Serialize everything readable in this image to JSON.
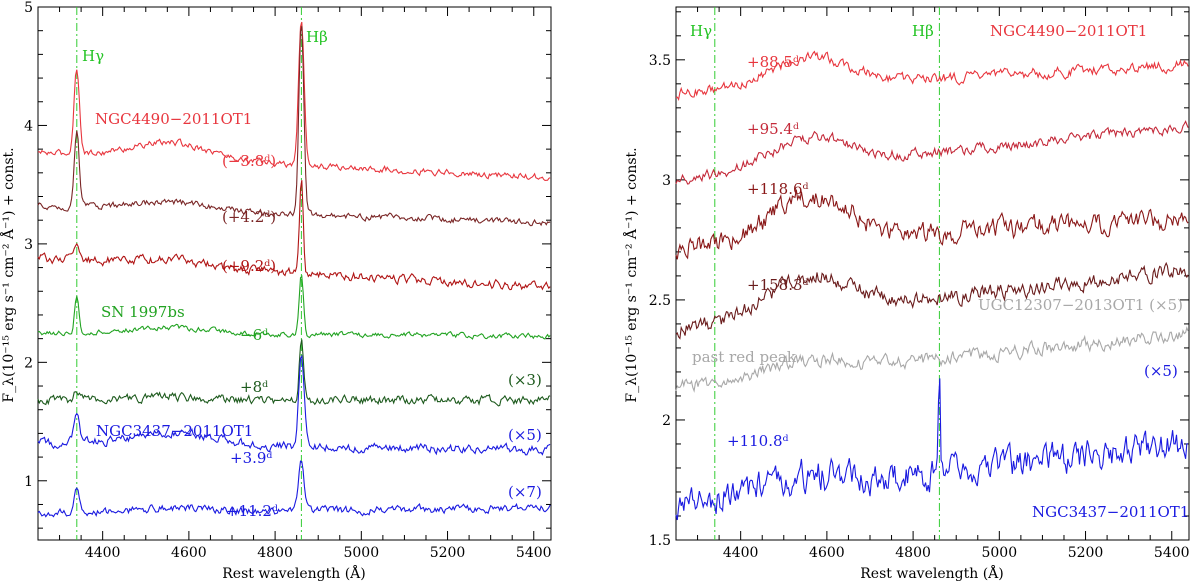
{
  "chart_data": [
    {
      "type": "line",
      "panel": "left",
      "xlabel": "Rest wavelength (Å)",
      "ylabel": "F_λ(10⁻¹⁵ erg s⁻¹ cm⁻² Å⁻¹) + const.",
      "xlim": [
        4250,
        5440
      ],
      "ylim": [
        0.5,
        5.0
      ],
      "xticks": [
        4400,
        4600,
        4800,
        5000,
        5200,
        5400
      ],
      "yticks": [
        1,
        2,
        3,
        4,
        5
      ],
      "lines": [
        {
          "label": "Hγ",
          "x": 4340
        },
        {
          "label": "Hβ",
          "x": 4861
        }
      ],
      "series": [
        {
          "name": "NGC4490-2011OT1 −3.8d",
          "color": "#e8363e",
          "base": 3.77,
          "slope": -0.21,
          "hg": 0.72,
          "hb": 1.23,
          "w": 9,
          "noise": 0.05,
          "bump": 0.14
        },
        {
          "name": "NGC4490-2011OT1 +4.2d",
          "color": "#7a2626",
          "base": 3.32,
          "slope": -0.14,
          "hg": 0.62,
          "hb": 1.62,
          "w": 8,
          "noise": 0.05,
          "bump": 0.07
        },
        {
          "name": "NGC4490-2011OT1 +9.2d",
          "color": "#b01414",
          "base": 2.88,
          "slope": -0.25,
          "hg": 0.12,
          "hb": 0.8,
          "w": 6,
          "noise": 0.07,
          "bump": 0.05
        },
        {
          "name": "SN 1997bs −6d",
          "color": "#22a322",
          "base": 2.25,
          "slope": -0.03,
          "hg": 0.32,
          "hb": 0.5,
          "w": 7,
          "noise": 0.04,
          "bump": 0.05
        },
        {
          "name": "SN 1997bs +8d (×3)",
          "color": "#1d5a1d",
          "base": 1.68,
          "slope": 0.0,
          "hg": 0.1,
          "hb": 0.5,
          "w": 7,
          "noise": 0.07,
          "bump": 0.03
        },
        {
          "name": "NGC3437-2011OT1 +3.9d (×5)",
          "color": "#1a1ae0",
          "base": 1.32,
          "slope": -0.06,
          "hg": 0.2,
          "hb": 0.76,
          "w": 9,
          "noise": 0.07,
          "bump": 0.1
        },
        {
          "name": "NGC3437-2011OT1 +11.2d (×7)",
          "color": "#1a1ae0",
          "base": 0.72,
          "slope": 0.05,
          "hg": 0.2,
          "hb": 0.44,
          "w": 9,
          "noise": 0.06,
          "bump": 0.04
        }
      ],
      "annotations": [
        {
          "text": "Hγ",
          "color": "#22c322"
        },
        {
          "text": "Hβ",
          "color": "#22c322"
        },
        {
          "text": "NGC4490−2011OT1",
          "color": "#e8363e"
        },
        {
          "text": "(−3.8ᵈ)",
          "color": "#e8363e"
        },
        {
          "text": "(+4.2ᵈ)",
          "color": "#7a2626"
        },
        {
          "text": "(+9.2ᵈ)",
          "color": "#b01414"
        },
        {
          "text": "SN 1997bs",
          "color": "#22a322"
        },
        {
          "text": "−6ᵈ",
          "color": "#22a322"
        },
        {
          "text": "+8ᵈ",
          "color": "#1d5a1d"
        },
        {
          "text": "(×3)",
          "color": "#1d5a1d"
        },
        {
          "text": "NGC3437−2011OT1",
          "color": "#1a1ae0"
        },
        {
          "text": "+3.9ᵈ",
          "color": "#1a1ae0"
        },
        {
          "text": "(×5)",
          "color": "#1a1ae0"
        },
        {
          "text": "+11.2ᵈ",
          "color": "#1a1ae0"
        },
        {
          "text": "(×7)",
          "color": "#1a1ae0"
        }
      ]
    },
    {
      "type": "line",
      "panel": "right",
      "xlabel": "Rest wavelength (Å)",
      "ylabel": "F_λ(10⁻¹⁵ erg s⁻¹ cm⁻² Å⁻¹) + const.",
      "xlim": [
        4250,
        5440
      ],
      "ylim": [
        1.5,
        3.72
      ],
      "xticks": [
        4400,
        4600,
        4800,
        5000,
        5200,
        5400
      ],
      "yticks": [
        1.5,
        2,
        2.5,
        3,
        3.5
      ],
      "lines": [
        {
          "label": "Hγ",
          "x": 4340
        },
        {
          "label": "Hβ",
          "x": 4861
        }
      ],
      "series": [
        {
          "name": "NGC4490-2011OT1 +88.5d",
          "color": "#e8363e",
          "base": 3.36,
          "slope": 0.12,
          "hg": 0.0,
          "hb": 0.0,
          "w": 6,
          "noise": 0.04,
          "bump": 0.12
        },
        {
          "name": "NGC4490-2011OT1 +95.4d",
          "color": "#c42a3a",
          "base": 3.0,
          "slope": 0.22,
          "hg": 0.0,
          "hb": 0.0,
          "w": 6,
          "noise": 0.04,
          "bump": 0.12
        },
        {
          "name": "NGC4490-2011OT1 +118.6d",
          "color": "#8a1818",
          "base": 2.72,
          "slope": 0.12,
          "hg": 0.0,
          "hb": 0.0,
          "w": 6,
          "noise": 0.08,
          "bump": 0.18
        },
        {
          "name": "NGC4490-2011OT1 +158.3d",
          "color": "#6a1c1c",
          "base": 2.38,
          "slope": 0.25,
          "hg": 0.0,
          "hb": 0.0,
          "w": 6,
          "noise": 0.06,
          "bump": 0.16
        },
        {
          "name": "UGC12307-2013OT1 past red peak (×5)",
          "color": "#a8a8a8",
          "base": 2.14,
          "slope": 0.22,
          "hg": 0.0,
          "hb": 0.0,
          "w": 6,
          "noise": 0.05,
          "bump": 0.05
        },
        {
          "name": "NGC3437-2011OT1 +110.8d (×5)",
          "color": "#1a1ae0",
          "base": 1.65,
          "slope": 0.25,
          "hg": 0.0,
          "hb": 0.35,
          "w": 3,
          "noise": 0.12,
          "bump": 0.05
        }
      ],
      "annotations": [
        {
          "text": "Hγ",
          "color": "#22c322"
        },
        {
          "text": "Hβ",
          "color": "#22c322"
        },
        {
          "text": "NGC4490−2011OT1",
          "color": "#e8363e"
        },
        {
          "text": "+88.5ᵈ",
          "color": "#e8363e"
        },
        {
          "text": "+95.4ᵈ",
          "color": "#c42a3a"
        },
        {
          "text": "+118.6ᵈ",
          "color": "#8a1818"
        },
        {
          "text": "+158.3ᵈ",
          "color": "#6a1c1c"
        },
        {
          "text": "UGC12307−2013OT1  (×5)",
          "color": "#a8a8a8"
        },
        {
          "text": "past red peak",
          "color": "#a8a8a8"
        },
        {
          "text": "+110.8ᵈ",
          "color": "#1a1ae0"
        },
        {
          "text": "(×5)",
          "color": "#1a1ae0"
        },
        {
          "text": "NGC3437−2011OT1",
          "color": "#1a1ae0"
        }
      ]
    }
  ]
}
